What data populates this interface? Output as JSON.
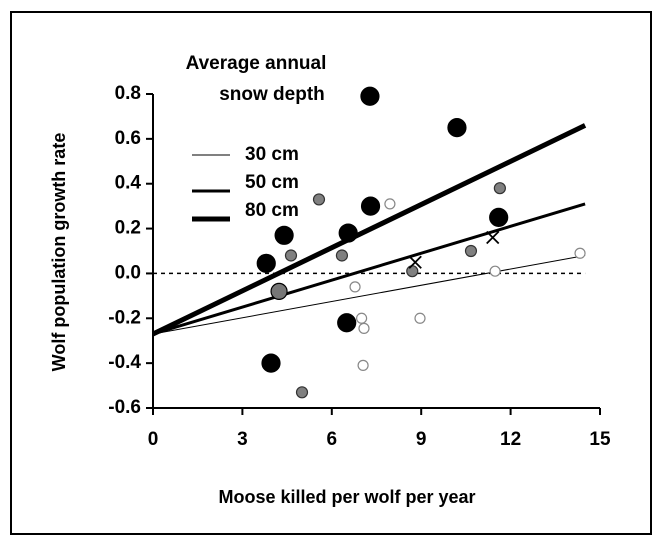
{
  "chart_data": {
    "type": "scatter",
    "x_label": "Moose killed per wolf per year",
    "y_label": "Wolf population growth rate",
    "legend_title": [
      "Average annual",
      "snow depth"
    ],
    "xlim": [
      0,
      15
    ],
    "xticks": [
      0,
      3,
      6,
      9,
      12,
      15
    ],
    "ylim": [
      -0.6,
      0.8
    ],
    "yticks": [
      {
        "value": -0.6,
        "label": "-0.6"
      },
      {
        "value": -0.4,
        "label": "-0.4"
      },
      {
        "value": -0.2,
        "label": "-0.2"
      },
      {
        "value": 0,
        "label": "0.0"
      },
      {
        "value": 0.2,
        "label": "0.2"
      },
      {
        "value": 0.4,
        "label": "0.4"
      },
      {
        "value": 0.6,
        "label": "0.6"
      },
      {
        "value": 0.8,
        "label": "0.8"
      }
    ],
    "reference_line": {
      "y": 0,
      "x": [
        0,
        14.5
      ]
    },
    "lines": [
      {
        "name": "30 cm",
        "width": 1,
        "color": "#000000",
        "x": [
          0,
          14.5
        ],
        "values": [
          -0.27,
          0.08
        ]
      },
      {
        "name": "50 cm",
        "width": 3,
        "color": "#000000",
        "x": [
          0,
          14.5
        ],
        "values": [
          -0.27,
          0.31
        ]
      },
      {
        "name": "80 cm",
        "width": 5,
        "color": "#000000",
        "x": [
          0,
          14.5
        ],
        "values": [
          -0.27,
          0.66
        ]
      }
    ],
    "series": [
      {
        "marker": "circle",
        "size": 9,
        "color": "#000000",
        "edge": "#000000",
        "x": [
          7.28,
          10.2,
          7.3,
          4.4,
          6.55,
          3.8,
          11.6,
          6.5,
          3.96
        ],
        "values": [
          0.79,
          0.65,
          0.3,
          0.17,
          0.18,
          0.045,
          0.25,
          -0.22,
          -0.4
        ]
      },
      {
        "marker": "circle",
        "size": 8,
        "color": "#777777",
        "edge": "#000000",
        "x": [
          4.23
        ],
        "values": [
          -0.08
        ]
      },
      {
        "marker": "circle",
        "size": 5.5,
        "color": "#808080",
        "edge": "#333333",
        "x": [
          5.57,
          4.63,
          6.34,
          11.64,
          10.67,
          8.7,
          5.0
        ],
        "values": [
          0.33,
          0.08,
          0.08,
          0.38,
          0.1,
          0.01,
          -0.53
        ]
      },
      {
        "marker": "circle",
        "size": 5,
        "color": "#ffffff",
        "edge": "#888888",
        "x": [
          7.95,
          6.78,
          7.08,
          7.0,
          7.05,
          8.96,
          11.48,
          14.33
        ],
        "values": [
          0.31,
          -0.06,
          -0.245,
          -0.2,
          -0.41,
          -0.2,
          0.01,
          0.09
        ]
      },
      {
        "marker": "cross",
        "size": 6,
        "color": "#000000",
        "edge": "#000000",
        "x": [
          8.8,
          11.4
        ],
        "values": [
          0.05,
          0.16
        ]
      }
    ]
  }
}
